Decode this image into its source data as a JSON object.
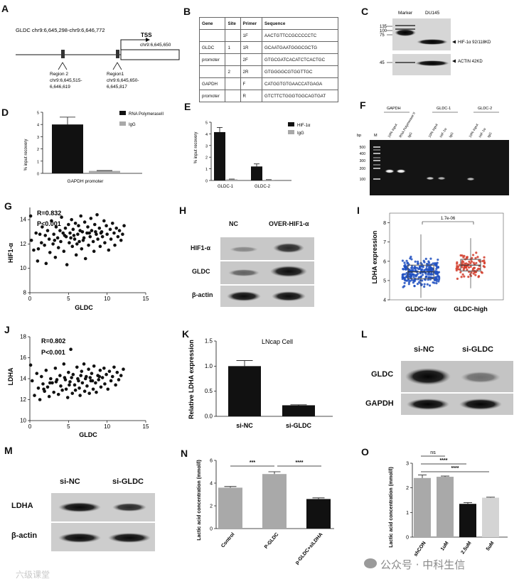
{
  "panels": {
    "A": {
      "label": "A",
      "region_header": "GLDC chr9:6,645,298-chr9:6,646,772",
      "tss_label": "TSS",
      "tss_coord": "chr9:6,645,650",
      "region2": [
        "Region 2",
        "chr9:6,645,515-",
        "6,646,619"
      ],
      "region1": [
        "Region1",
        "chr9:6,645,650-",
        "6,645,817"
      ]
    },
    "B": {
      "label": "B",
      "headers": [
        "Gene",
        "Site",
        "Primer",
        "Sequence"
      ],
      "rows": [
        {
          "gene": "",
          "site": "",
          "primer": "1F",
          "seq": "AACTGTTCCGCCCCCTC"
        },
        {
          "gene": "GLDC",
          "site": "1",
          "primer": "1R",
          "seq": "GCAATGAATGGGCGCTG"
        },
        {
          "gene": "promoter",
          "site": "",
          "primer": "2F",
          "seq": "GTGCGATCACATCTCACTGC"
        },
        {
          "gene": "",
          "site": "2",
          "primer": "2R",
          "seq": "GTGGGGCGTGGTTGC"
        },
        {
          "gene": "GAPDH",
          "site": "",
          "primer": "F",
          "seq": "CATGGTGTGAACCATGAGA"
        },
        {
          "gene": "promoter",
          "site": "",
          "primer": "R",
          "seq": "GTCTTCTGGGTGGCAGTGAT"
        }
      ]
    },
    "C": {
      "label": "C",
      "lane_labels": [
        "Marker",
        "DU145"
      ],
      "markers_top": [
        "135",
        "100",
        "75"
      ],
      "marker_bottom": "45",
      "band1": "HIF-1α 92/118KD",
      "band2": "ACTIN 42KD"
    },
    "D": {
      "label": "D",
      "ylabel": "% input recovery",
      "yticks": [
        "0",
        "1",
        "2",
        "3",
        "4",
        "5"
      ],
      "xlabel": "GAPDH  promoter",
      "legend": [
        "RNA PolymeraseII",
        "IgG"
      ]
    },
    "E": {
      "label": "E",
      "ylabel": "% input recovery",
      "yticks": [
        "0",
        "1",
        "2",
        "3",
        "4",
        "5"
      ],
      "categories": [
        "GLDC-1",
        "GLDC-2"
      ],
      "legend": [
        "HIF-1α",
        "IgG"
      ]
    },
    "F": {
      "label": "F",
      "groups": [
        "GAPDH",
        "GLDC-1",
        "GLDC-2"
      ],
      "lanes": [
        "10% Input",
        "RNA Polymerase II",
        "IgG",
        "10% Input",
        "HIF-1α",
        "IgG",
        "10% Input",
        "HIF-1α",
        "IgG"
      ],
      "bp_label": "bp",
      "m_label": "M",
      "ladder": [
        "500",
        "400",
        "300",
        "200",
        "100"
      ]
    },
    "G": {
      "label": "G",
      "r": "R=0.832",
      "p": "P<0.001",
      "xlabel": "GLDC",
      "ylabel": "HIF1-α",
      "xticks": [
        "0",
        "5",
        "10",
        "15"
      ],
      "yticks": [
        "8",
        "10",
        "12",
        "14"
      ]
    },
    "H": {
      "label": "H",
      "columns": [
        "NC",
        "OVER-HIF1-α"
      ],
      "rows": [
        "HIF1-α",
        "GLDC",
        "β-actin"
      ]
    },
    "I": {
      "label": "I",
      "pvalue": "1.7e-06",
      "ylabel": "LDHA expression",
      "yticks": [
        "4",
        "5",
        "6",
        "7",
        "8"
      ],
      "categories": [
        "GLDC-low",
        "GLDC-high"
      ]
    },
    "J": {
      "label": "J",
      "r": "R=0.802",
      "p": "P<0.001",
      "xlabel": "GLDC",
      "ylabel": "LDHA",
      "xticks": [
        "0",
        "5",
        "10",
        "15"
      ],
      "yticks": [
        "10",
        "12",
        "14",
        "16",
        "18"
      ]
    },
    "K": {
      "label": "K",
      "title": "LNcap  Cell",
      "ylabel": "Relative LDHA expression",
      "yticks": [
        "0.0",
        "0.5",
        "1.0",
        "1.5"
      ],
      "categories": [
        "si-NC",
        "si-GLDC"
      ]
    },
    "L": {
      "label": "L",
      "columns": [
        "si-NC",
        "si-GLDC"
      ],
      "rows": [
        "GLDC",
        "GAPDH"
      ]
    },
    "M": {
      "label": "M",
      "columns": [
        "si-NC",
        "si-GLDC"
      ],
      "rows": [
        "LDHA",
        "β-actin"
      ]
    },
    "N": {
      "label": "N",
      "ylabel": "Lactic acid concentration (mmol/l)",
      "yticks": [
        "0",
        "2",
        "4",
        "6"
      ],
      "categories": [
        "Control",
        "P-GLDC",
        "p-GLDC+siLDHA"
      ],
      "sig": [
        "***",
        "****"
      ]
    },
    "O": {
      "label": "O",
      "ylabel": "Lactic acid concentration (mmol/l)",
      "yticks": [
        "0",
        "1",
        "2",
        "3"
      ],
      "categories": [
        "shCON",
        "1uM",
        "2.5uM",
        "5uM"
      ],
      "sig": [
        "ns",
        "****",
        "****"
      ]
    }
  },
  "watermark": {
    "left": "六级课堂",
    "right": "公众号 · 中科生信"
  },
  "colors": {
    "black": "#111111",
    "gray": "#a9a9a9",
    "blue": "#1f4fbf",
    "red": "#d23c2a"
  },
  "chart_data": [
    {
      "panel": "D",
      "type": "bar",
      "categories": [
        "GAPDH  promoter"
      ],
      "series": [
        {
          "name": "RNA PolymeraseII",
          "values": [
            4.0
          ],
          "err": [
            0.6
          ]
        },
        {
          "name": "IgG",
          "values": [
            0.2
          ],
          "err": [
            0.03
          ]
        }
      ],
      "ylabel": "% input recovery",
      "ylim": [
        0,
        5
      ]
    },
    {
      "panel": "E",
      "type": "bar",
      "categories": [
        "GLDC-1",
        "GLDC-2"
      ],
      "series": [
        {
          "name": "HIF-1α",
          "values": [
            4.15,
            1.2
          ],
          "err": [
            0.4,
            0.22
          ]
        },
        {
          "name": "IgG",
          "values": [
            0.1,
            0.05
          ],
          "err": [
            0.02,
            0.02
          ]
        }
      ],
      "ylabel": "% input recovery",
      "ylim": [
        0,
        5
      ]
    },
    {
      "panel": "K",
      "type": "bar",
      "categories": [
        "si-NC",
        "si-GLDC"
      ],
      "values": [
        1.0,
        0.22
      ],
      "err": [
        0.11,
        0.01
      ],
      "title": "LNcap  Cell",
      "ylabel": "Relative LDHA expression",
      "ylim": [
        0,
        1.5
      ]
    },
    {
      "panel": "N",
      "type": "bar",
      "categories": [
        "Control",
        "P-GLDC",
        "p-GLDC+siLDHA"
      ],
      "values": [
        3.6,
        4.8,
        2.6
      ],
      "err": [
        0.1,
        0.2,
        0.1
      ],
      "ylabel": "Lactic acid concentration (mmol/l)",
      "ylim": [
        0,
        6
      ]
    },
    {
      "panel": "O",
      "type": "bar",
      "categories": [
        "shCON",
        "1uM",
        "2.5uM",
        "5uM"
      ],
      "values": [
        2.4,
        2.45,
        1.35,
        1.6
      ],
      "err": [
        0.12,
        0.03,
        0.05,
        0.02
      ],
      "ylabel": "Lactic acid concentration (mmol/l)",
      "ylim": [
        0,
        3
      ]
    },
    {
      "panel": "G",
      "type": "scatter",
      "xlabel": "GLDC",
      "ylabel": "HIF1-α",
      "xlim": [
        0,
        15
      ],
      "ylim": [
        8,
        15
      ],
      "points": [
        [
          0.1,
          14.3
        ],
        [
          0.2,
          12.3
        ],
        [
          0.5,
          11.5
        ],
        [
          0.8,
          12.9
        ],
        [
          1.0,
          10.6
        ],
        [
          1.1,
          11.6
        ],
        [
          1.3,
          12.8
        ],
        [
          1.5,
          12.1
        ],
        [
          1.6,
          13.4
        ],
        [
          1.9,
          11.9
        ],
        [
          2.0,
          12.7
        ],
        [
          2.1,
          10.4
        ],
        [
          2.3,
          13.1
        ],
        [
          2.5,
          12.4
        ],
        [
          2.6,
          11.3
        ],
        [
          2.8,
          13.9
        ],
        [
          3.0,
          12.0
        ],
        [
          3.1,
          12.8
        ],
        [
          3.3,
          10.9
        ],
        [
          3.4,
          13.4
        ],
        [
          3.6,
          12.5
        ],
        [
          3.7,
          11.7
        ],
        [
          3.9,
          13.1
        ],
        [
          4.0,
          12.2
        ],
        [
          4.1,
          14.2
        ],
        [
          4.3,
          12.9
        ],
        [
          4.4,
          11.4
        ],
        [
          4.6,
          13.3
        ],
        [
          4.7,
          12.6
        ],
        [
          4.8,
          10.3
        ],
        [
          5.0,
          13.6
        ],
        [
          5.1,
          12.1
        ],
        [
          5.2,
          12.9
        ],
        [
          5.4,
          14.0
        ],
        [
          5.5,
          11.8
        ],
        [
          5.6,
          13.2
        ],
        [
          5.8,
          12.4
        ],
        [
          5.9,
          13.7
        ],
        [
          6.0,
          11.1
        ],
        [
          6.2,
          12.8
        ],
        [
          6.3,
          13.5
        ],
        [
          6.4,
          12.2
        ],
        [
          6.6,
          14.3
        ],
        [
          6.7,
          11.6
        ],
        [
          6.8,
          13.0
        ],
        [
          7.0,
          12.5
        ],
        [
          7.1,
          13.8
        ],
        [
          7.2,
          10.8
        ],
        [
          7.4,
          12.9
        ],
        [
          7.5,
          13.4
        ],
        [
          7.6,
          11.9
        ],
        [
          7.8,
          12.6
        ],
        [
          7.9,
          14.1
        ],
        [
          8.0,
          13.1
        ],
        [
          8.2,
          12.2
        ],
        [
          8.3,
          11.4
        ],
        [
          8.4,
          13.6
        ],
        [
          8.6,
          12.8
        ],
        [
          8.7,
          14.4
        ],
        [
          8.8,
          12.4
        ],
        [
          9.0,
          13.3
        ],
        [
          9.1,
          11.8
        ],
        [
          9.3,
          13.0
        ],
        [
          9.4,
          12.6
        ],
        [
          9.6,
          13.9
        ],
        [
          9.7,
          12.1
        ],
        [
          9.9,
          13.5
        ],
        [
          10.0,
          12.8
        ],
        [
          10.2,
          11.5
        ],
        [
          10.4,
          13.2
        ],
        [
          10.5,
          12.4
        ],
        [
          10.7,
          13.7
        ],
        [
          10.9,
          12.9
        ],
        [
          11.0,
          11.9
        ],
        [
          11.2,
          13.3
        ],
        [
          11.4,
          12.6
        ],
        [
          11.6,
          13.1
        ],
        [
          11.8,
          12.3
        ],
        [
          12.0,
          12.8
        ],
        [
          12.2,
          13.5
        ],
        [
          3.2,
          12.3
        ],
        [
          4.5,
          12.7
        ],
        [
          5.3,
          12.5
        ],
        [
          6.1,
          12.0
        ],
        [
          6.9,
          12.3
        ],
        [
          7.7,
          12.9
        ],
        [
          8.5,
          13.0
        ],
        [
          9.2,
          12.9
        ],
        [
          6.5,
          13.1
        ],
        [
          5.7,
          12.7
        ]
      ]
    },
    {
      "panel": "J",
      "type": "scatter",
      "xlabel": "GLDC",
      "ylabel": "LDHA",
      "xlim": [
        0,
        15
      ],
      "ylim": [
        10,
        18
      ],
      "points": [
        [
          0.1,
          15.3
        ],
        [
          0.3,
          13.8
        ],
        [
          0.6,
          12.4
        ],
        [
          0.9,
          14.5
        ],
        [
          1.1,
          13.1
        ],
        [
          1.3,
          12.0
        ],
        [
          1.5,
          14.2
        ],
        [
          1.7,
          13.5
        ],
        [
          1.9,
          12.8
        ],
        [
          2.1,
          14.8
        ],
        [
          2.3,
          13.2
        ],
        [
          2.5,
          12.3
        ],
        [
          2.7,
          14.0
        ],
        [
          2.9,
          13.6
        ],
        [
          3.1,
          12.7
        ],
        [
          3.3,
          15.0
        ],
        [
          3.5,
          13.9
        ],
        [
          3.7,
          12.5
        ],
        [
          3.9,
          14.3
        ],
        [
          4.0,
          13.3
        ],
        [
          4.2,
          12.9
        ],
        [
          4.4,
          15.4
        ],
        [
          4.5,
          14.1
        ],
        [
          4.7,
          13.0
        ],
        [
          4.9,
          12.2
        ],
        [
          5.0,
          14.6
        ],
        [
          5.2,
          13.7
        ],
        [
          5.3,
          16.8
        ],
        [
          5.5,
          12.6
        ],
        [
          5.6,
          14.4
        ],
        [
          5.8,
          13.4
        ],
        [
          5.9,
          12.9
        ],
        [
          6.1,
          15.1
        ],
        [
          6.2,
          14.0
        ],
        [
          6.4,
          13.1
        ],
        [
          6.5,
          12.4
        ],
        [
          6.7,
          14.7
        ],
        [
          6.8,
          13.6
        ],
        [
          7.0,
          15.4
        ],
        [
          7.1,
          12.8
        ],
        [
          7.3,
          14.2
        ],
        [
          7.4,
          13.3
        ],
        [
          7.6,
          14.9
        ],
        [
          7.7,
          12.6
        ],
        [
          7.9,
          13.8
        ],
        [
          8.0,
          14.5
        ],
        [
          8.2,
          13.0
        ],
        [
          8.3,
          15.2
        ],
        [
          8.5,
          13.6
        ],
        [
          8.6,
          12.7
        ],
        [
          8.8,
          14.3
        ],
        [
          8.9,
          13.9
        ],
        [
          9.1,
          14.8
        ],
        [
          9.2,
          13.2
        ],
        [
          9.4,
          14.1
        ],
        [
          9.6,
          15.0
        ],
        [
          9.7,
          13.5
        ],
        [
          9.9,
          14.4
        ],
        [
          10.1,
          13.0
        ],
        [
          10.3,
          14.7
        ],
        [
          10.5,
          13.8
        ],
        [
          10.7,
          14.2
        ],
        [
          10.9,
          15.1
        ],
        [
          11.1,
          13.4
        ],
        [
          11.3,
          14.6
        ],
        [
          11.5,
          13.9
        ],
        [
          11.8,
          14.3
        ],
        [
          12.1,
          14.9
        ],
        [
          3.4,
          13.7
        ],
        [
          4.6,
          13.9
        ],
        [
          5.4,
          14.1
        ],
        [
          6.3,
          13.8
        ],
        [
          7.2,
          14.0
        ],
        [
          8.1,
          13.8
        ],
        [
          9.0,
          14.2
        ],
        [
          5.1,
          13.4
        ],
        [
          6.6,
          14.3
        ],
        [
          7.8,
          14.1
        ],
        [
          2.6,
          13.6
        ],
        [
          1.8,
          13.0
        ]
      ]
    },
    {
      "panel": "I",
      "type": "box",
      "categories": [
        "GLDC-low",
        "GLDC-high"
      ],
      "ylabel": "LDHA expression",
      "ylim": [
        4,
        8.5
      ],
      "boxes": [
        {
          "min": 4.1,
          "q1": 5.1,
          "median": 5.45,
          "q3": 5.8,
          "max": 7.4
        },
        {
          "min": 4.6,
          "q1": 5.5,
          "median": 5.8,
          "q3": 6.1,
          "max": 7.2
        }
      ],
      "pvalue": "1.7e-06"
    }
  ]
}
